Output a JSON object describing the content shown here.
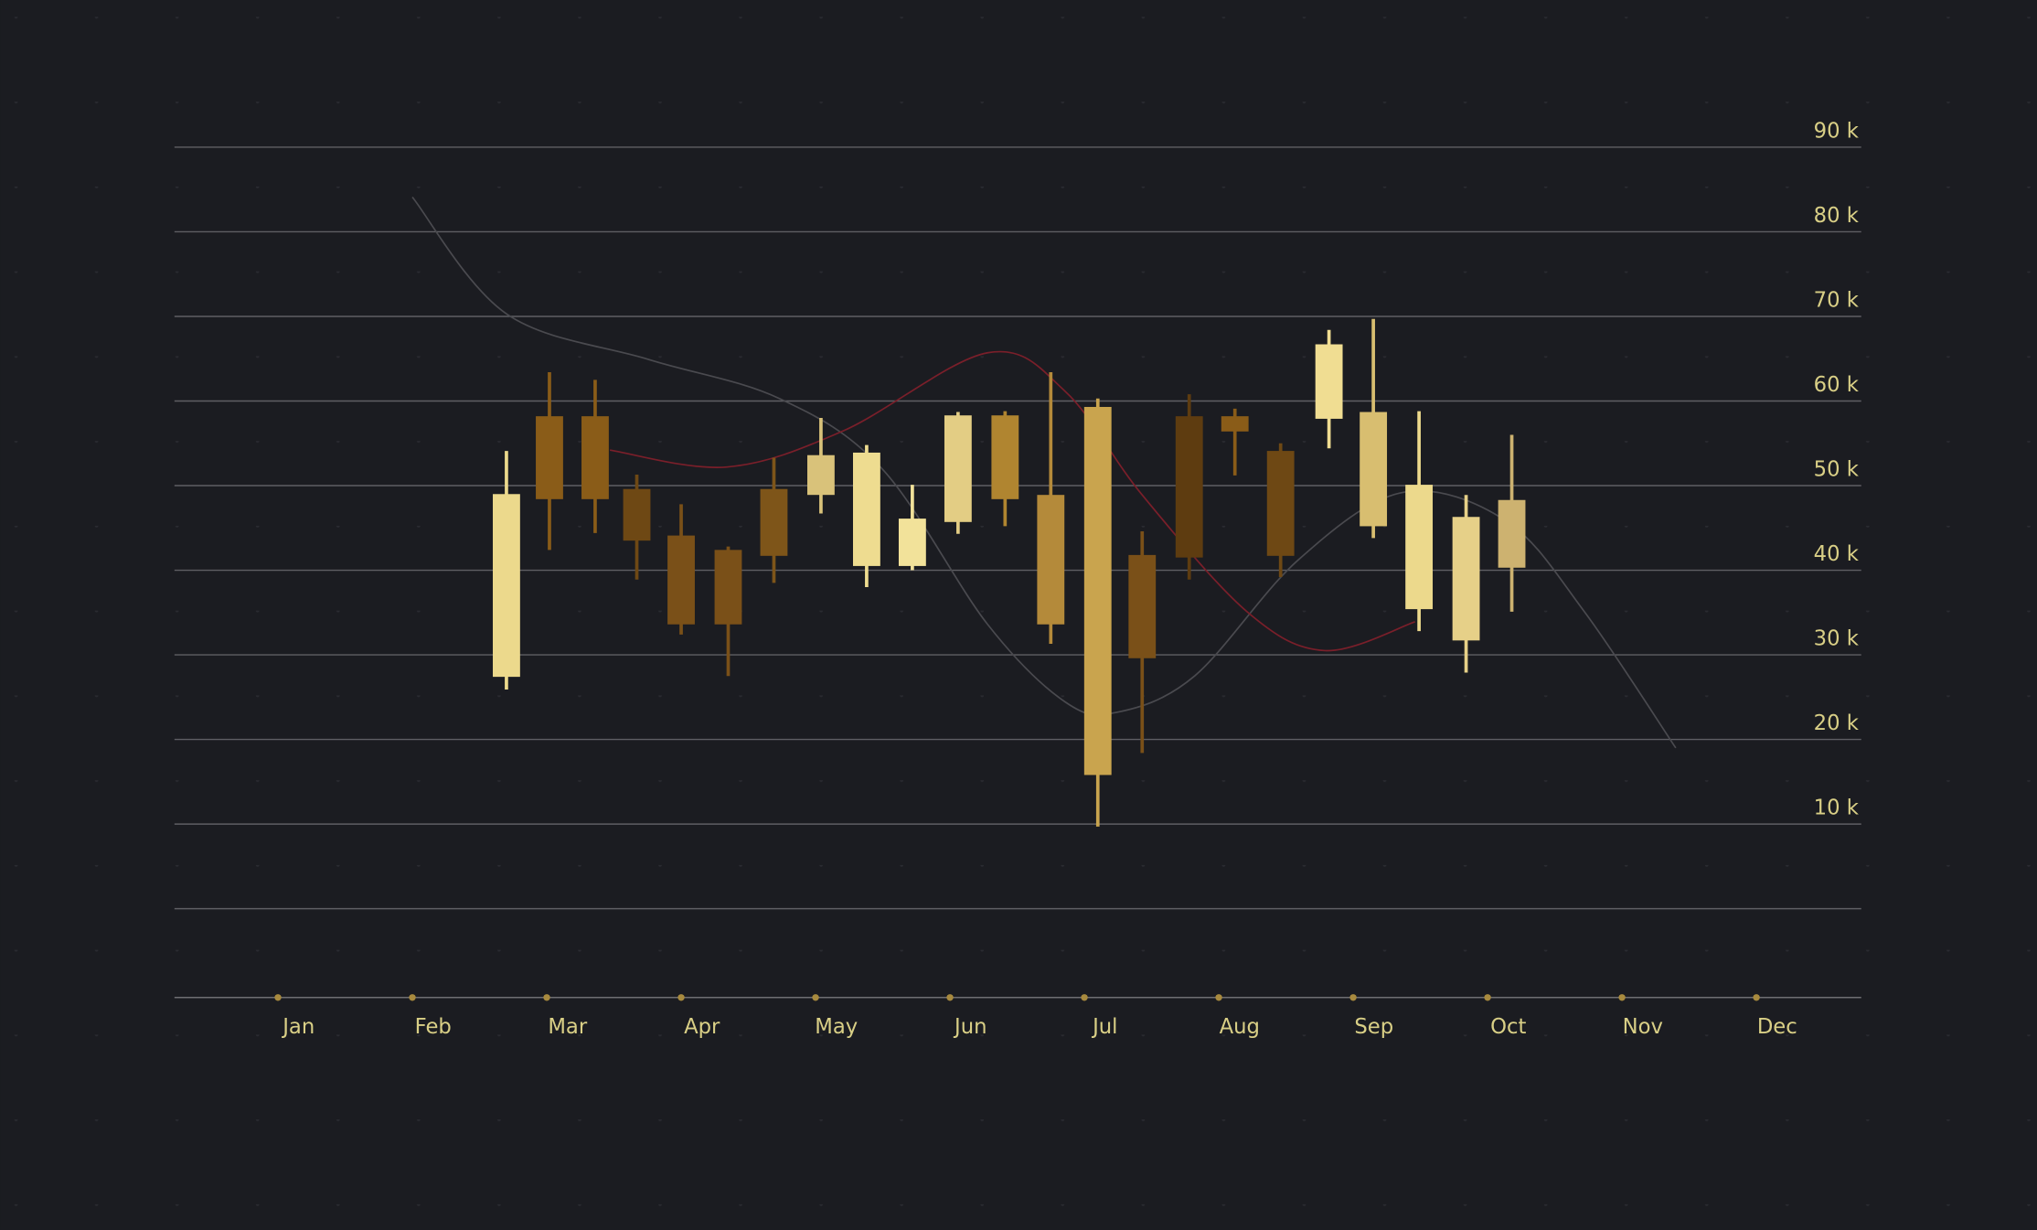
{
  "chart_data": {
    "type": "candlestick",
    "x": [
      1.7,
      2.02,
      2.36,
      2.67,
      3.0,
      3.35,
      3.69,
      4.04,
      4.38,
      4.72,
      5.06,
      5.41,
      5.75,
      6.1,
      6.43,
      6.78,
      7.12,
      7.46,
      7.82,
      8.15,
      8.49,
      8.84,
      9.18
    ],
    "open": [
      27400,
      58200,
      58200,
      49600,
      44100,
      42400,
      49600,
      48900,
      40500,
      40500,
      45700,
      58300,
      48900,
      59300,
      41800,
      58200,
      58200,
      54100,
      57900,
      58700,
      35400,
      31700,
      40300
    ],
    "close": [
      49000,
      48400,
      48400,
      43500,
      33600,
      33600,
      41700,
      53600,
      53900,
      46100,
      58300,
      48400,
      33600,
      15800,
      29600,
      41500,
      56400,
      41700,
      66700,
      45200,
      50100,
      46300,
      48300
    ],
    "high": [
      54100,
      63400,
      62500,
      51300,
      47800,
      42800,
      53300,
      58000,
      54800,
      50100,
      58700,
      58800,
      63400,
      60300,
      44600,
      60800,
      59100,
      55000,
      68400,
      69700,
      58800,
      48900,
      56000
    ],
    "low": [
      25900,
      42400,
      44400,
      38900,
      32400,
      27500,
      38500,
      46700,
      38000,
      40000,
      44300,
      45200,
      31300,
      9700,
      18400,
      38900,
      51200,
      39200,
      54400,
      43800,
      32800,
      27900,
      35100
    ],
    "colors": [
      "#ecd98c",
      "#8a5c18",
      "#8a5c18",
      "#6e4814",
      "#7a5018",
      "#7a5018",
      "#7e5519",
      "#d9c27a",
      "#eedc90",
      "#f2e29a",
      "#e3cd84",
      "#b08530",
      "#b48a3a",
      "#c9a44e",
      "#7a5018",
      "#5e3c10",
      "#8a5c18",
      "#6e4814",
      "#f0dd92",
      "#d8be70",
      "#ecd98c",
      "#e6d088",
      "#cdb270"
    ],
    "overlays": [
      {
        "color": "#4a4a4f",
        "x": [
          1.0,
          1.7,
          2.76,
          3.73,
          4.5,
          5.28,
          5.86,
          6.24,
          6.82,
          7.59,
          8.37,
          9.14,
          9.72,
          10.4
        ],
        "values": [
          84100,
          70300,
          64900,
          60300,
          51900,
          33600,
          24400,
          23200,
          27500,
          41200,
          49200,
          45800,
          35100,
          19000
        ]
      },
      {
        "color": "#7a1f2a",
        "x": [
          2.47,
          3.34,
          4.21,
          5.28,
          5.86,
          6.43,
          7.21,
          7.79,
          8.46
        ],
        "values": [
          54200,
          52200,
          56500,
          65700,
          61100,
          48900,
          35100,
          30500,
          33900
        ]
      }
    ],
    "xlim": [
      -0.77,
      11.78
    ],
    "xticks": [
      {
        "value": 0,
        "label": "Jan"
      },
      {
        "value": 1,
        "label": "Feb"
      },
      {
        "value": 2,
        "label": "Mar"
      },
      {
        "value": 3,
        "label": "Apr"
      },
      {
        "value": 4,
        "label": "May"
      },
      {
        "value": 5,
        "label": "Jun"
      },
      {
        "value": 6,
        "label": "Jul"
      },
      {
        "value": 7,
        "label": "Aug"
      },
      {
        "value": 8,
        "label": "Sep"
      },
      {
        "value": 9,
        "label": "Oct"
      },
      {
        "value": 10,
        "label": "Nov"
      },
      {
        "value": 11,
        "label": "Dec"
      }
    ],
    "ylim": [
      -10500,
      95000
    ],
    "yticks": [
      {
        "value": 0,
        "label": null
      },
      {
        "value": 10000,
        "label": "10 k"
      },
      {
        "value": 20000,
        "label": "20 k"
      },
      {
        "value": 30000,
        "label": "30 k"
      },
      {
        "value": 40000,
        "label": "40 k"
      },
      {
        "value": 50000,
        "label": "50 k"
      },
      {
        "value": 60000,
        "label": "60 k"
      },
      {
        "value": 70000,
        "label": "70 k"
      },
      {
        "value": 80000,
        "label": "80 k"
      },
      {
        "value": 90000,
        "label": "90 k"
      }
    ],
    "grid": true
  }
}
